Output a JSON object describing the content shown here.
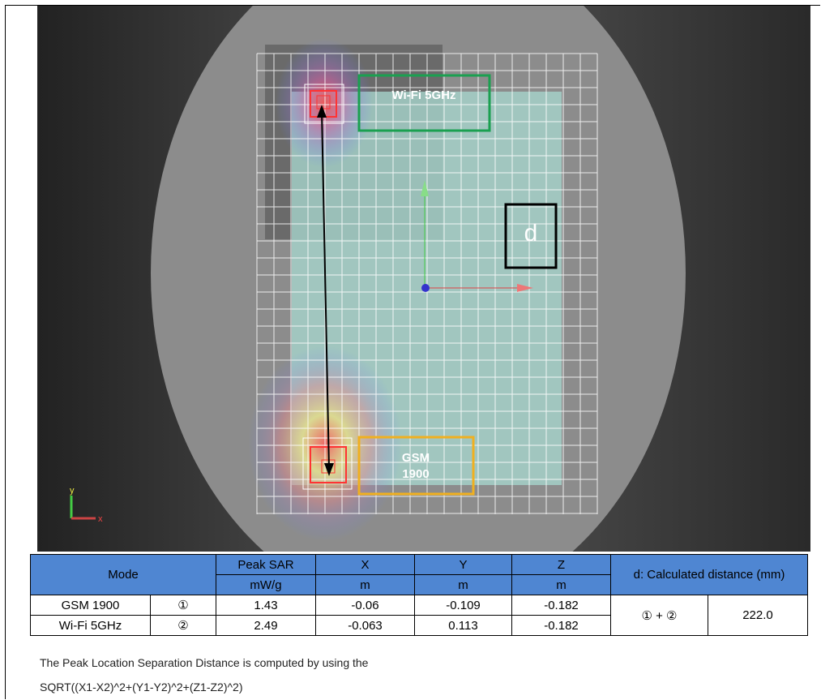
{
  "image": {
    "wifi_label": "Wi-Fi 5GHz",
    "gsm_label_lines": [
      "GSM",
      "1900"
    ],
    "d_label": "d",
    "axis_y": "y",
    "axis_x": "x"
  },
  "table": {
    "headers": {
      "mode": "Mode",
      "peak_sar": "Peak  SAR",
      "x": "X",
      "y": "Y",
      "z": "Z",
      "distance": "d: Calculated distance (mm)"
    },
    "units": [
      "mW/g",
      "m",
      "m",
      "m"
    ],
    "rows": [
      [
        "GSM 1900",
        "①",
        "1.43",
        "-0.06",
        "-0.109",
        "-0.182"
      ],
      [
        "Wi-Fi 5GHz",
        "②",
        "2.49",
        "-0.063",
        "0.113",
        "-0.182"
      ]
    ],
    "sum": "① + ②",
    "distance": "222.0"
  },
  "notes": [
    "The Peak Location Separation Distance is computed by using the",
    "SQRT((X1-X2)^2+(Y1-Y2)^2+(Z1-Z2)^2)"
  ]
}
